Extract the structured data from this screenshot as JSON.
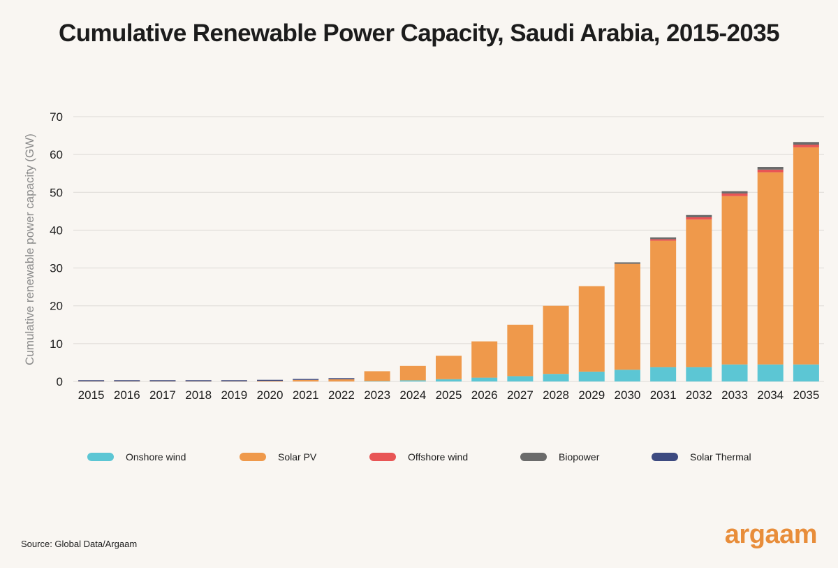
{
  "title": "Cumulative Renewable Power Capacity, Saudi Arabia, 2015-2035",
  "source": "Source: Global Data/Argaam",
  "brand": "argaam",
  "chart_data": {
    "type": "bar",
    "stacked": true,
    "title": "Cumulative Renewable Power Capacity, Saudi Arabia, 2015-2035",
    "xlabel": "",
    "ylabel": "Cumulative renewable power capacity (GW)",
    "ylim": [
      0,
      70
    ],
    "yticks": [
      0,
      10,
      20,
      30,
      40,
      50,
      60,
      70
    ],
    "grid": true,
    "legend_position": "bottom",
    "categories": [
      "2015",
      "2016",
      "2017",
      "2018",
      "2019",
      "2020",
      "2021",
      "2022",
      "2023",
      "2024",
      "2025",
      "2026",
      "2027",
      "2028",
      "2029",
      "2030",
      "2031",
      "2032",
      "2033",
      "2034",
      "2035"
    ],
    "series": [
      {
        "name": "Onshore wind",
        "color": "#5cc6d4",
        "values": [
          0.0,
          0.0,
          0.0,
          0.0,
          0.0,
          0.0,
          0.0,
          0.0,
          0.1,
          0.3,
          0.6,
          1.0,
          1.4,
          2.0,
          2.6,
          3.1,
          3.8,
          3.8,
          4.5,
          4.5,
          4.5
        ]
      },
      {
        "name": "Solar PV",
        "color": "#ef994b",
        "values": [
          0.05,
          0.05,
          0.05,
          0.05,
          0.05,
          0.15,
          0.4,
          0.6,
          2.6,
          3.8,
          6.2,
          9.6,
          13.6,
          18.0,
          22.6,
          28.0,
          33.4,
          39.0,
          44.5,
          50.8,
          57.4
        ]
      },
      {
        "name": "Offshore wind",
        "color": "#e85555",
        "values": [
          0,
          0,
          0,
          0,
          0,
          0,
          0,
          0,
          0,
          0,
          0,
          0,
          0,
          0,
          0,
          0,
          0.4,
          0.6,
          0.7,
          0.7,
          0.7
        ]
      },
      {
        "name": "Biopower",
        "color": "#6b6b6b",
        "values": [
          0,
          0,
          0,
          0,
          0,
          0,
          0,
          0,
          0,
          0,
          0,
          0,
          0,
          0,
          0,
          0.4,
          0.5,
          0.6,
          0.6,
          0.7,
          0.7
        ]
      },
      {
        "name": "Solar Thermal",
        "color": "#3d4a80",
        "values": [
          0.05,
          0.05,
          0.05,
          0.15,
          0.15,
          0.2,
          0.2,
          0.2,
          0,
          0,
          0,
          0,
          0,
          0,
          0,
          0,
          0,
          0,
          0,
          0,
          0
        ]
      }
    ]
  }
}
